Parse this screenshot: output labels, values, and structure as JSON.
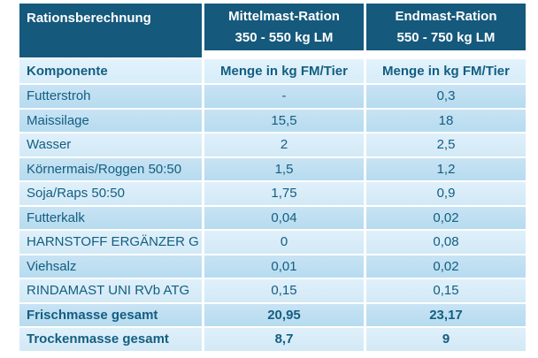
{
  "table": {
    "title": "Rationsberechnung",
    "col_headers": [
      {
        "line1": "Mittelmast-Ration",
        "line2": "350 - 550 kg LM"
      },
      {
        "line1": "Endmast-Ration",
        "line2": "550 - 750 kg LM"
      }
    ],
    "subheader": {
      "component_label": "Komponente",
      "unit_label_1": "Menge in kg FM/Tier",
      "unit_label_2": "Menge in kg FM/Tier"
    },
    "rows": [
      {
        "label": "Futterstroh",
        "mittelmast": "-",
        "endmast": "0,3"
      },
      {
        "label": "Maissilage",
        "mittelmast": "15,5",
        "endmast": "18"
      },
      {
        "label": "Wasser",
        "mittelmast": "2",
        "endmast": "2,5"
      },
      {
        "label": "Körnermais/Roggen 50:50",
        "mittelmast": "1,5",
        "endmast": "1,2"
      },
      {
        "label": "Soja/Raps 50:50",
        "mittelmast": "1,75",
        "endmast": "0,9"
      },
      {
        "label": "Futterkalk",
        "mittelmast": "0,04",
        "endmast": "0,02"
      },
      {
        "label": "HARNSTOFF ERGÄNZER G",
        "mittelmast": "0",
        "endmast": "0,08"
      },
      {
        "label": "Viehsalz",
        "mittelmast": "0,01",
        "endmast": "0,02"
      },
      {
        "label": "RINDAMAST UNI RVb ATG",
        "mittelmast": "0,15",
        "endmast": "0,15"
      },
      {
        "label": "Frischmasse gesamt",
        "mittelmast": "20,95",
        "endmast": "23,17"
      },
      {
        "label": "Trockenmasse gesamt",
        "mittelmast": "8,7",
        "endmast": "9"
      }
    ],
    "colors": {
      "header_bg": "#15597c",
      "subheader_bg": "#dceefa",
      "row_medium": "#bcdcf0",
      "row_light": "#d8ecf8",
      "text_dark": "#135e81",
      "text_light": "#ffffff"
    }
  }
}
